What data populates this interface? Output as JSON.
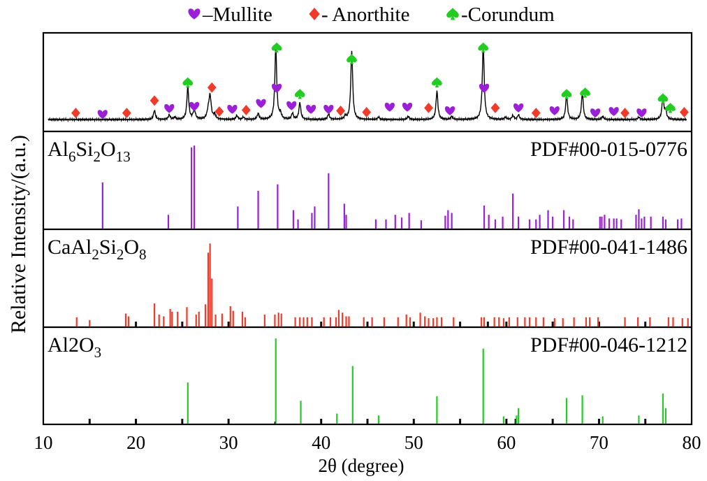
{
  "chart_data": {
    "type": "xrd-stacked",
    "xlabel": "2θ (degree)",
    "ylabel": "Relative Intensity/(a.u.)",
    "xlim": [
      10,
      80
    ],
    "xticks": [
      10,
      20,
      30,
      40,
      50,
      60,
      70,
      80
    ],
    "legend": [
      {
        "symbol": "heart",
        "name": "Mullite",
        "sep": "–",
        "color": "#9b1fd6"
      },
      {
        "symbol": "diamond",
        "name": "Anorthite",
        "sep": "- ",
        "color": "#f03a2a"
      },
      {
        "symbol": "spade",
        "name": "Corundum",
        "sep": "-",
        "color": "#22cc22"
      }
    ],
    "measured": {
      "baseline": 0.03,
      "peaks": [
        {
          "x": 22.0,
          "h": 0.12,
          "w": 0.12
        },
        {
          "x": 23.6,
          "h": 0.06,
          "w": 0.12
        },
        {
          "x": 24.2,
          "h": 0.03,
          "w": 0.12
        },
        {
          "x": 25.6,
          "h": 0.42,
          "w": 0.12
        },
        {
          "x": 26.3,
          "h": 0.12,
          "w": 0.15
        },
        {
          "x": 27.8,
          "h": 0.08,
          "w": 0.15
        },
        {
          "x": 28.0,
          "h": 0.3,
          "w": 0.15
        },
        {
          "x": 28.5,
          "h": 0.06,
          "w": 0.12
        },
        {
          "x": 30.9,
          "h": 0.05,
          "w": 0.12
        },
        {
          "x": 31.6,
          "h": 0.03,
          "w": 0.12
        },
        {
          "x": 33.2,
          "h": 0.08,
          "w": 0.12
        },
        {
          "x": 35.1,
          "h": 0.95,
          "w": 0.12
        },
        {
          "x": 35.6,
          "h": 0.07,
          "w": 0.12
        },
        {
          "x": 36.9,
          "h": 0.08,
          "w": 0.12
        },
        {
          "x": 37.7,
          "h": 0.22,
          "w": 0.12
        },
        {
          "x": 40.8,
          "h": 0.07,
          "w": 0.12
        },
        {
          "x": 42.6,
          "h": 0.04,
          "w": 0.12
        },
        {
          "x": 43.3,
          "h": 0.9,
          "w": 0.12
        },
        {
          "x": 46.2,
          "h": 0.03,
          "w": 0.12
        },
        {
          "x": 49.4,
          "h": 0.04,
          "w": 0.12
        },
        {
          "x": 52.5,
          "h": 0.37,
          "w": 0.12
        },
        {
          "x": 54.1,
          "h": 0.04,
          "w": 0.12
        },
        {
          "x": 57.5,
          "h": 0.98,
          "w": 0.12
        },
        {
          "x": 59.9,
          "h": 0.03,
          "w": 0.12
        },
        {
          "x": 60.7,
          "h": 0.05,
          "w": 0.12
        },
        {
          "x": 61.3,
          "h": 0.06,
          "w": 0.12
        },
        {
          "x": 66.5,
          "h": 0.32,
          "w": 0.12
        },
        {
          "x": 68.2,
          "h": 0.34,
          "w": 0.12
        },
        {
          "x": 70.4,
          "h": 0.04,
          "w": 0.12
        },
        {
          "x": 74.3,
          "h": 0.03,
          "w": 0.12
        },
        {
          "x": 76.9,
          "h": 0.3,
          "w": 0.12
        },
        {
          "x": 77.2,
          "h": 0.1,
          "w": 0.12
        }
      ],
      "markers": [
        {
          "x": 13.5,
          "y": 0.1,
          "phase": "diamond"
        },
        {
          "x": 16.4,
          "y": 0.08,
          "phase": "heart"
        },
        {
          "x": 19.0,
          "y": 0.1,
          "phase": "diamond"
        },
        {
          "x": 22.0,
          "y": 0.27,
          "phase": "diamond"
        },
        {
          "x": 23.6,
          "y": 0.16,
          "phase": "heart"
        },
        {
          "x": 25.6,
          "y": 0.52,
          "phase": "spade"
        },
        {
          "x": 26.3,
          "y": 0.19,
          "phase": "heart"
        },
        {
          "x": 28.2,
          "y": 0.45,
          "phase": "diamond"
        },
        {
          "x": 29.0,
          "y": 0.12,
          "phase": "diamond"
        },
        {
          "x": 30.4,
          "y": 0.15,
          "phase": "heart"
        },
        {
          "x": 31.9,
          "y": 0.14,
          "phase": "diamond"
        },
        {
          "x": 33.5,
          "y": 0.23,
          "phase": "heart"
        },
        {
          "x": 35.2,
          "y": 1.0,
          "phase": "spade"
        },
        {
          "x": 35.2,
          "y": 0.44,
          "phase": "heart"
        },
        {
          "x": 36.8,
          "y": 0.2,
          "phase": "heart"
        },
        {
          "x": 37.7,
          "y": 0.36,
          "phase": "spade"
        },
        {
          "x": 38.9,
          "y": 0.15,
          "phase": "heart"
        },
        {
          "x": 40.8,
          "y": 0.15,
          "phase": "heart"
        },
        {
          "x": 42.1,
          "y": 0.13,
          "phase": "diamond"
        },
        {
          "x": 43.3,
          "y": 0.84,
          "phase": "spade"
        },
        {
          "x": 44.9,
          "y": 0.11,
          "phase": "diamond"
        },
        {
          "x": 47.4,
          "y": 0.18,
          "phase": "heart"
        },
        {
          "x": 49.3,
          "y": 0.18,
          "phase": "heart"
        },
        {
          "x": 51.6,
          "y": 0.17,
          "phase": "diamond"
        },
        {
          "x": 52.5,
          "y": 0.52,
          "phase": "spade"
        },
        {
          "x": 53.9,
          "y": 0.13,
          "phase": "heart"
        },
        {
          "x": 57.5,
          "y": 1.0,
          "phase": "spade"
        },
        {
          "x": 57.6,
          "y": 0.44,
          "phase": "heart"
        },
        {
          "x": 58.8,
          "y": 0.17,
          "phase": "diamond"
        },
        {
          "x": 61.3,
          "y": 0.17,
          "phase": "heart"
        },
        {
          "x": 63.2,
          "y": 0.1,
          "phase": "diamond"
        },
        {
          "x": 65.2,
          "y": 0.13,
          "phase": "heart"
        },
        {
          "x": 66.5,
          "y": 0.36,
          "phase": "spade"
        },
        {
          "x": 68.5,
          "y": 0.38,
          "phase": "spade"
        },
        {
          "x": 69.6,
          "y": 0.1,
          "phase": "heart"
        },
        {
          "x": 71.6,
          "y": 0.12,
          "phase": "heart"
        },
        {
          "x": 72.8,
          "y": 0.1,
          "phase": "diamond"
        },
        {
          "x": 74.6,
          "y": 0.1,
          "phase": "heart"
        },
        {
          "x": 76.9,
          "y": 0.3,
          "phase": "spade"
        },
        {
          "x": 77.7,
          "y": 0.17,
          "phase": "spade"
        },
        {
          "x": 79.2,
          "y": 0.11,
          "phase": "diamond"
        }
      ]
    },
    "references": [
      {
        "formula": "Al6Si2O13",
        "formula_parts": [
          [
            "Al",
            ""
          ],
          [
            "6",
            "sub"
          ],
          [
            "Si",
            ""
          ],
          [
            "2",
            "sub"
          ],
          [
            "O",
            ""
          ],
          [
            "13",
            "sub"
          ]
        ],
        "pdf": "PDF#00-015-0776",
        "color": "#9b1fd6",
        "lines": [
          [
            16.4,
            0.5
          ],
          [
            23.5,
            0.15
          ],
          [
            26.0,
            0.88
          ],
          [
            26.3,
            0.9
          ],
          [
            31.0,
            0.24
          ],
          [
            33.2,
            0.41
          ],
          [
            35.3,
            0.48
          ],
          [
            37.0,
            0.2
          ],
          [
            37.5,
            0.1
          ],
          [
            39.0,
            0.17
          ],
          [
            39.3,
            0.24
          ],
          [
            40.8,
            0.6
          ],
          [
            42.5,
            0.27
          ],
          [
            42.7,
            0.15
          ],
          [
            45.9,
            0.1
          ],
          [
            47.0,
            0.1
          ],
          [
            48.0,
            0.15
          ],
          [
            48.7,
            0.12
          ],
          [
            49.5,
            0.17
          ],
          [
            50.8,
            0.09
          ],
          [
            53.4,
            0.14
          ],
          [
            53.7,
            0.2
          ],
          [
            54.1,
            0.17
          ],
          [
            57.6,
            0.25
          ],
          [
            58.1,
            0.15
          ],
          [
            58.8,
            0.1
          ],
          [
            59.6,
            0.13
          ],
          [
            60.7,
            0.38
          ],
          [
            61.3,
            0.13
          ],
          [
            62.5,
            0.1
          ],
          [
            63.2,
            0.1
          ],
          [
            63.6,
            0.15
          ],
          [
            64.5,
            0.2
          ],
          [
            65.0,
            0.13
          ],
          [
            66.2,
            0.2
          ],
          [
            66.8,
            0.13
          ],
          [
            67.2,
            0.1
          ],
          [
            70.1,
            0.13
          ],
          [
            70.3,
            0.13
          ],
          [
            70.6,
            0.15
          ],
          [
            71.1,
            0.11
          ],
          [
            71.6,
            0.11
          ],
          [
            71.9,
            0.11
          ],
          [
            72.4,
            0.1
          ],
          [
            74.0,
            0.15
          ],
          [
            74.3,
            0.21
          ],
          [
            74.6,
            0.11
          ],
          [
            74.9,
            0.13
          ],
          [
            75.6,
            0.13
          ],
          [
            76.9,
            0.13
          ],
          [
            77.2,
            0.1
          ],
          [
            78.5,
            0.1
          ],
          [
            78.9,
            0.11
          ]
        ]
      },
      {
        "formula": "CaAl2Si2O8",
        "formula_parts": [
          [
            "CaAl",
            ""
          ],
          [
            "2",
            "sub"
          ],
          [
            "Si",
            ""
          ],
          [
            "2",
            "sub"
          ],
          [
            "O",
            ""
          ],
          [
            "8",
            "sub"
          ]
        ],
        "pdf": "PDF#00-041-1486",
        "color": "#f03a2a",
        "tick_color": "#111111",
        "lines": [
          [
            13.6,
            0.1
          ],
          [
            15.0,
            0.07
          ],
          [
            18.9,
            0.14
          ],
          [
            19.2,
            0.11
          ],
          [
            22.0,
            0.25
          ],
          [
            22.5,
            0.13
          ],
          [
            23.0,
            0.11
          ],
          [
            23.7,
            0.19
          ],
          [
            23.9,
            0.16
          ],
          [
            24.5,
            0.16
          ],
          [
            25.5,
            0.21
          ],
          [
            26.5,
            0.13
          ],
          [
            26.8,
            0.16
          ],
          [
            27.5,
            0.24
          ],
          [
            27.8,
            0.8
          ],
          [
            28.0,
            0.9
          ],
          [
            28.2,
            0.52
          ],
          [
            28.6,
            0.13
          ],
          [
            29.3,
            0.14
          ],
          [
            30.2,
            0.22
          ],
          [
            30.5,
            0.17
          ],
          [
            31.5,
            0.16
          ],
          [
            31.8,
            0.1
          ],
          [
            33.9,
            0.13
          ],
          [
            35.0,
            0.13
          ],
          [
            35.4,
            0.15
          ],
          [
            35.7,
            0.14
          ],
          [
            37.2,
            0.1
          ],
          [
            37.7,
            0.1
          ],
          [
            38.1,
            0.1
          ],
          [
            38.5,
            0.1
          ],
          [
            39.0,
            0.1
          ],
          [
            40.3,
            0.1
          ],
          [
            41.0,
            0.1
          ],
          [
            41.6,
            0.1
          ],
          [
            41.9,
            0.18
          ],
          [
            42.3,
            0.15
          ],
          [
            42.7,
            0.11
          ],
          [
            43.0,
            0.11
          ],
          [
            44.6,
            0.1
          ],
          [
            45.5,
            0.1
          ],
          [
            46.8,
            0.1
          ],
          [
            48.3,
            0.1
          ],
          [
            49.2,
            0.13
          ],
          [
            49.6,
            0.1
          ],
          [
            50.7,
            0.15
          ],
          [
            51.2,
            0.11
          ],
          [
            51.6,
            0.09
          ],
          [
            52.1,
            0.09
          ],
          [
            52.5,
            0.1
          ],
          [
            53.0,
            0.1
          ],
          [
            54.3,
            0.1
          ],
          [
            57.3,
            0.1
          ],
          [
            57.6,
            0.1
          ],
          [
            58.7,
            0.1
          ],
          [
            59.2,
            0.1
          ],
          [
            59.7,
            0.09
          ],
          [
            60.3,
            0.1
          ],
          [
            61.2,
            0.1
          ],
          [
            62.0,
            0.1
          ],
          [
            62.5,
            0.1
          ],
          [
            63.2,
            0.1
          ],
          [
            64.0,
            0.1
          ],
          [
            65.2,
            0.09
          ],
          [
            66.1,
            0.09
          ],
          [
            67.3,
            0.1
          ],
          [
            68.6,
            0.1
          ],
          [
            69.0,
            0.1
          ],
          [
            69.9,
            0.1
          ],
          [
            72.8,
            0.1
          ],
          [
            74.2,
            0.1
          ],
          [
            75.5,
            0.1
          ],
          [
            77.5,
            0.1
          ],
          [
            78.0,
            0.1
          ],
          [
            79.0,
            0.09
          ],
          [
            79.6,
            0.09
          ]
        ],
        "ticks": [
          20.0,
          25.0,
          30.0,
          40.0,
          45.0,
          50.0,
          55.0,
          58.0,
          60.0,
          65.0,
          70.0,
          75.0
        ]
      },
      {
        "formula": "Al2O3",
        "formula_parts": [
          [
            "Al2O",
            ""
          ],
          [
            "3",
            "sub"
          ]
        ],
        "pdf": "PDF#00-046-1212",
        "color": "#22cc22",
        "tick_color": "#111111",
        "lines": [
          [
            25.6,
            0.45
          ],
          [
            35.1,
            0.93
          ],
          [
            37.8,
            0.25
          ],
          [
            41.7,
            0.11
          ],
          [
            43.4,
            0.63
          ],
          [
            46.2,
            0.09
          ],
          [
            52.5,
            0.3
          ],
          [
            57.5,
            0.82
          ],
          [
            59.7,
            0.08
          ],
          [
            61.1,
            0.09
          ],
          [
            61.3,
            0.17
          ],
          [
            66.5,
            0.28
          ],
          [
            68.2,
            0.31
          ],
          [
            70.4,
            0.08
          ],
          [
            74.3,
            0.09
          ],
          [
            76.9,
            0.33
          ],
          [
            77.2,
            0.17
          ]
        ],
        "ticks": [
          15.0,
          20.0,
          25.0,
          30.0,
          40.0,
          45.0,
          50.0,
          55.0,
          60.0,
          61.0,
          65.0,
          70.0,
          75.0
        ]
      }
    ]
  }
}
